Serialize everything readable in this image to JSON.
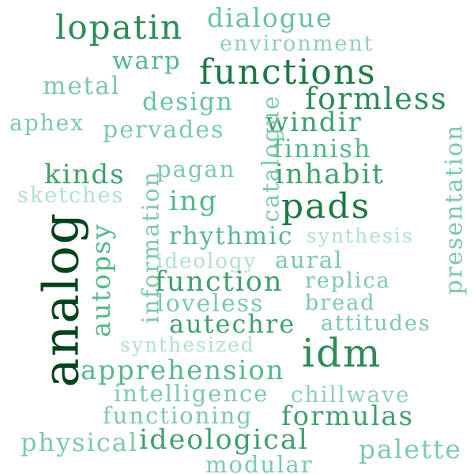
{
  "words": [
    {
      "text": "lopatin",
      "color": "#2e8b57"
    },
    {
      "text": "dialogue",
      "color": "#66c2a4"
    },
    {
      "text": "environment",
      "color": "#8fd1b4"
    },
    {
      "text": "warp",
      "color": "#57b88b"
    },
    {
      "text": "functions",
      "color": "#1d7a47"
    },
    {
      "text": "metal",
      "color": "#7ccaa7"
    },
    {
      "text": "design",
      "color": "#66c2a4"
    },
    {
      "text": "formless",
      "color": "#2e8b57"
    },
    {
      "text": "aphex",
      "color": "#7ccaa7"
    },
    {
      "text": "pervades",
      "color": "#7ccaa7"
    },
    {
      "text": "windir",
      "color": "#3fa06c"
    },
    {
      "text": "finnish",
      "color": "#57b88b"
    },
    {
      "text": "kinds",
      "color": "#3fa06c"
    },
    {
      "text": "pagan",
      "color": "#7ccaa7"
    },
    {
      "text": "inhabit",
      "color": "#3fa06c"
    },
    {
      "text": "sketches",
      "color": "#b2e0cc"
    },
    {
      "text": "ing",
      "color": "#57b88b"
    },
    {
      "text": "pads",
      "color": "#1d7a47"
    },
    {
      "text": "rhythmic",
      "color": "#57b88b"
    },
    {
      "text": "synthesis",
      "color": "#b2e0cc"
    },
    {
      "text": "ideology",
      "color": "#b2e0cc"
    },
    {
      "text": "aural",
      "color": "#7ccaa7"
    },
    {
      "text": "function",
      "color": "#3fa06c"
    },
    {
      "text": "replica",
      "color": "#7ccaa7"
    },
    {
      "text": "loveless",
      "color": "#7ccaa7"
    },
    {
      "text": "bread",
      "color": "#7ccaa7"
    },
    {
      "text": "autechre",
      "color": "#3fa06c"
    },
    {
      "text": "attitudes",
      "color": "#7ccaa7"
    },
    {
      "text": "synthesized",
      "color": "#b2e0cc"
    },
    {
      "text": "idm",
      "color": "#2e8b57"
    },
    {
      "text": "apprehension",
      "color": "#57b88b"
    },
    {
      "text": "intelligence",
      "color": "#7ccaa7"
    },
    {
      "text": "chillwave",
      "color": "#8fd1b4"
    },
    {
      "text": "functioning",
      "color": "#7ccaa7"
    },
    {
      "text": "formulas",
      "color": "#3fa06c"
    },
    {
      "text": "physical",
      "color": "#7ccaa7"
    },
    {
      "text": "ideological",
      "color": "#3fa06c"
    },
    {
      "text": "palette",
      "color": "#7ccaa7"
    },
    {
      "text": "modular",
      "color": "#7ccaa7"
    },
    {
      "text": "analog",
      "color": "#00441b"
    },
    {
      "text": "autopsy",
      "color": "#57b88b"
    },
    {
      "text": "information",
      "color": "#7ccaa7"
    },
    {
      "text": "catalogue",
      "color": "#7ccaa7"
    },
    {
      "text": "presentation",
      "color": "#7ccaa7"
    }
  ]
}
